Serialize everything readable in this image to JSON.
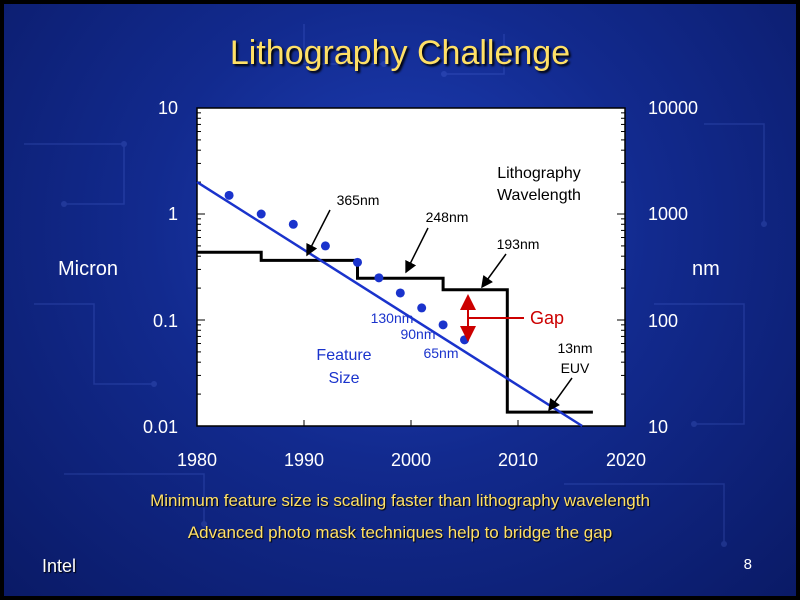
{
  "title": "Lithography Challenge",
  "y_left_label": "Micron",
  "y_right_label": "nm",
  "footer": {
    "line1": "Minimum feature size is scaling faster than lithography wavelength",
    "line2": "Advanced photo mask techniques help to bridge the gap"
  },
  "brand": "Intel",
  "page_number": "8",
  "colors": {
    "title": "#ffe066",
    "feature": "#1a33cc",
    "wavelength": "#000000",
    "gap": "#cc0000"
  },
  "chart_data": {
    "type": "line",
    "xlim": [
      1980,
      2020
    ],
    "ylim_left_micron": [
      0.01,
      10
    ],
    "ylim_right_nm": [
      10,
      10000
    ],
    "y_scale": "log",
    "x_ticks": [
      "1980",
      "1990",
      "2000",
      "2010",
      "2020"
    ],
    "y_left_ticks": [
      "10",
      "1",
      "0.1",
      "0.01"
    ],
    "y_right_ticks": [
      "10000",
      "1000",
      "100",
      "10"
    ],
    "series": [
      {
        "name": "Feature Size",
        "kind": "points",
        "points": [
          [
            1983,
            1.5
          ],
          [
            1986,
            1.0
          ],
          [
            1989,
            0.8
          ],
          [
            1992,
            0.5
          ],
          [
            1995,
            0.35
          ],
          [
            1997,
            0.25
          ],
          [
            1999,
            0.18
          ],
          [
            2001,
            0.13
          ],
          [
            2003,
            0.09
          ],
          [
            2005,
            0.065
          ]
        ],
        "trend": [
          [
            1980,
            2.0
          ],
          [
            2016,
            0.01
          ]
        ]
      },
      {
        "name": "Lithography Wavelength",
        "kind": "step",
        "points": [
          [
            1980,
            0.436
          ],
          [
            1986,
            0.436
          ],
          [
            1986,
            0.365
          ],
          [
            1995,
            0.365
          ],
          [
            1995,
            0.248
          ],
          [
            2003,
            0.248
          ],
          [
            2003,
            0.193
          ],
          [
            2009,
            0.193
          ],
          [
            2009,
            0.0135
          ],
          [
            2017,
            0.0135
          ]
        ]
      }
    ],
    "annotations": {
      "wavelength_title_line1": "Lithography",
      "wavelength_title_line2": "Wavelength",
      "w365": "365nm",
      "w248": "248nm",
      "w193": "193nm",
      "euv_line1": "13nm",
      "euv_line2": "EUV",
      "f130": "130nm",
      "f90": "90nm",
      "f65": "65nm",
      "feature_line1": "Feature",
      "feature_line2": "Size",
      "gap": "Gap"
    }
  }
}
